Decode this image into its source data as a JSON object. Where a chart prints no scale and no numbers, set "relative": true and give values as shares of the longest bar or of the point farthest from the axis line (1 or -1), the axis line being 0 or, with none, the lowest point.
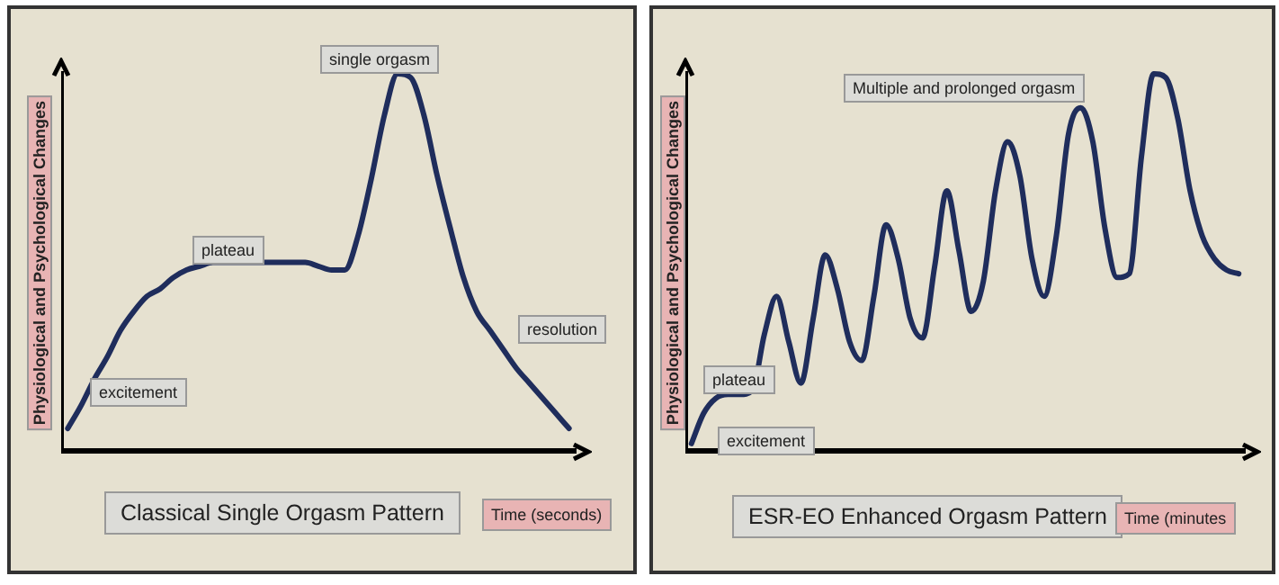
{
  "chart_data": [
    {
      "type": "line",
      "title": "Classical Single Orgasm Pattern",
      "xlabel": "Time (seconds)",
      "ylabel": "Physiological and Psychological Changes",
      "relative": true,
      "legend": false,
      "grid": false,
      "marker": "none",
      "line_style": "solid",
      "categories": [
        null,
        null,
        null,
        null,
        null,
        null,
        null,
        null,
        null,
        null,
        null,
        null,
        null,
        null,
        null,
        null,
        null,
        null,
        null,
        null,
        null,
        null,
        null,
        null,
        null,
        null,
        null,
        null,
        null,
        null,
        null,
        null,
        null,
        null,
        null,
        null,
        null,
        null,
        null
      ],
      "series": [
        {
          "color": "#1f2d5c",
          "values": [
            0.06,
            0.12,
            0.19,
            0.25,
            0.32,
            0.37,
            0.41,
            0.43,
            0.46,
            0.48,
            0.49,
            0.5,
            0.5,
            0.5,
            0.5,
            0.5,
            0.5,
            0.5,
            0.5,
            0.49,
            0.48,
            0.48,
            0.57,
            0.72,
            0.89,
            1,
            0.99,
            0.89,
            0.73,
            0.59,
            0.46,
            0.37,
            0.32,
            0.27,
            0.22,
            0.18,
            0.14,
            0.1,
            0.06
          ]
        }
      ],
      "annotations": [
        "excitement",
        "plateau",
        "single orgasm",
        "resolution"
      ]
    },
    {
      "type": "line",
      "title": "ESR-EO Enhanced Orgasm Pattern",
      "xlabel": "Time (minutes",
      "ylabel": "Physiological and Psychological Changes",
      "relative": true,
      "legend": false,
      "grid": false,
      "marker": "none",
      "line_style": "solid",
      "categories": [
        null,
        null,
        null,
        null,
        null,
        null,
        null,
        null,
        null,
        null,
        null,
        null,
        null,
        null,
        null,
        null,
        null,
        null,
        null,
        null,
        null,
        null,
        null,
        null,
        null,
        null,
        null,
        null,
        null,
        null,
        null,
        null,
        null,
        null,
        null,
        null,
        null,
        null,
        null,
        null,
        null,
        null,
        null,
        null,
        null,
        null
      ],
      "series": [
        {
          "color": "#1f2d5c",
          "values": [
            0.02,
            0.1,
            0.14,
            0.15,
            0.15,
            0.16,
            0.31,
            0.41,
            0.29,
            0.18,
            0.35,
            0.52,
            0.43,
            0.29,
            0.24,
            0.41,
            0.6,
            0.51,
            0.35,
            0.3,
            0.49,
            0.69,
            0.53,
            0.37,
            0.45,
            0.69,
            0.82,
            0.73,
            0.51,
            0.41,
            0.57,
            0.84,
            0.91,
            0.82,
            0.59,
            0.46,
            0.47,
            0.78,
            1,
            0.99,
            0.88,
            0.69,
            0.57,
            0.51,
            0.48,
            0.47
          ]
        }
      ],
      "annotations": [
        "Multiple and  prolonged orgasm",
        "plateau",
        "excitement"
      ]
    }
  ]
}
